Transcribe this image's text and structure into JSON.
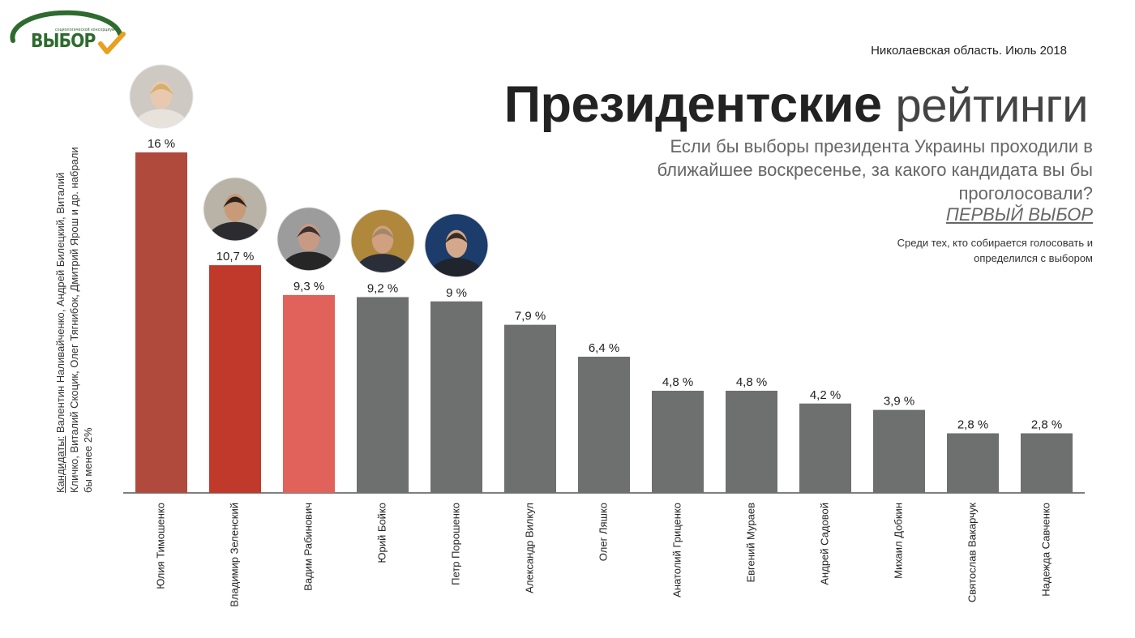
{
  "logo": {
    "tagline": "социологической консорциум",
    "wordmark": "ВЫБОР",
    "colors": {
      "arc": "#2e6b2e",
      "check": "#e8a020"
    }
  },
  "header": {
    "region_date": "Николаевская область. Июль 2018",
    "title_bold": "Президентские",
    "title_light": "рейтинги",
    "question": "Если бы выборы президента Украины проходили в ближайшее воскресенье, за какого кандидата вы бы проголосовали?",
    "first_choice": "ПЕРВЫЙ ВЫБОР",
    "note": "Среди тех, кто собирается голосовать и определился с выбором"
  },
  "side_note": {
    "prefix": "Кандидаты:",
    "text": " Валентин Наливайченко, Андрей Билецкий, Виталий Кличко, Виталий Скоцик, Олег Тягнибок, Дмитрий Ярош и др. набрали бы менее 2%"
  },
  "chart_data": {
    "type": "bar",
    "categories": [
      "Юлия Тимошенко",
      "Владимир Зеленский",
      "Вадим Рабинович",
      "Юрий Бойко",
      "Петр Порошенко",
      "Александр Вилкул",
      "Олег Ляшко",
      "Анатолий Гриценко",
      "Евгений Мураев",
      "Андрей Садовой",
      "Михаил Добкин",
      "Святослав Вакарчук",
      "Надежда Савченко"
    ],
    "values": [
      16,
      10.7,
      9.3,
      9.2,
      9,
      7.9,
      6.4,
      4.8,
      4.8,
      4.2,
      3.9,
      2.8,
      2.8
    ],
    "value_labels": [
      "16 %",
      "10,7 %",
      "9,3 %",
      "9,2 %",
      "9 %",
      "7,9 %",
      "6,4 %",
      "4,8 %",
      "4,8 %",
      "4,2 %",
      "3,9 %",
      "2,8 %",
      "2,8 %"
    ],
    "bar_colors": [
      "#b04a3c",
      "#c0392b",
      "#e0625a",
      "#6d706e",
      "#6d706e",
      "#6d706e",
      "#6d706e",
      "#6d706e",
      "#6d706e",
      "#6d706e",
      "#6d706e",
      "#6d706e",
      "#6d706e"
    ],
    "photos": [
      {
        "index": 0,
        "icon": "portrait-icon",
        "bg": "#cfc9c4",
        "face": "#e8c9b0",
        "hair": "#d4b06a",
        "suit": "#e8e2dc"
      },
      {
        "index": 1,
        "icon": "portrait-icon",
        "bg": "#b8b3a6",
        "face": "#c89a78",
        "hair": "#2a221c",
        "suit": "#2c2c30"
      },
      {
        "index": 2,
        "icon": "portrait-icon",
        "bg": "#9c9c9c",
        "face": "#c89a84",
        "hair": "#3a3030",
        "suit": "#262626"
      },
      {
        "index": 3,
        "icon": "portrait-icon",
        "bg": "#b0883c",
        "face": "#d0a080",
        "hair": "#a08868",
        "suit": "#2a2e38"
      },
      {
        "index": 4,
        "icon": "portrait-icon",
        "bg": "#1c3c6c",
        "face": "#d4a88a",
        "hair": "#3a2c22",
        "suit": "#20242c"
      }
    ],
    "ylim": [
      0,
      16
    ],
    "grid": false,
    "legend": "none"
  }
}
